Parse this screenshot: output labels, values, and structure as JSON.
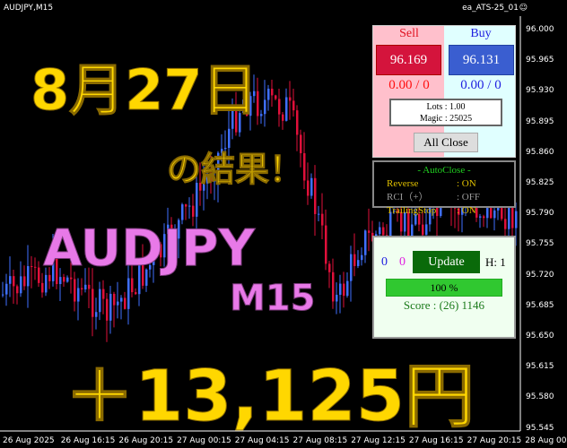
{
  "header": {
    "symbol": "AUDJPY,M15",
    "ea_name": "ea_ATS-25_01",
    "ea_icon": "smiley-icon"
  },
  "price_axis": [
    "96.000",
    "95.965",
    "95.930",
    "95.895",
    "95.860",
    "95.825",
    "95.790",
    "95.755",
    "95.720",
    "95.685",
    "95.650",
    "95.615",
    "95.580",
    "95.545"
  ],
  "time_axis": [
    "26 Aug 2025",
    "26 Aug 16:15",
    "26 Aug 20:15",
    "27 Aug 00:15",
    "27 Aug 04:15",
    "27 Aug 08:15",
    "27 Aug 12:15",
    "27 Aug 16:15",
    "27 Aug 20:15",
    "28 Aug 00"
  ],
  "overlay": {
    "date": "8月27日",
    "result": "の結果！",
    "pair": "AUDJPY",
    "timeframe": "M15",
    "profit": "＋13,125円"
  },
  "trade_panel": {
    "sell_label": "Sell",
    "buy_label": "Buy",
    "sell_price": "96.169",
    "buy_price": "96.131",
    "sell_pl": "0.00 / 0",
    "buy_pl": "0.00 / 0",
    "lots": "Lots   : 1.00",
    "magic": "Magic : 25025",
    "all_close": "All Close"
  },
  "autoclose": {
    "title": "- AutoClose -",
    "rows": [
      {
        "label": "Reverse",
        "value": ": ON"
      },
      {
        "label": "RCI（+）",
        "value": ": OFF"
      },
      {
        "label": "TrailingStop",
        "value": ": ON"
      }
    ]
  },
  "score_panel": {
    "count_blue": "0",
    "count_magenta": "0",
    "update": "Update",
    "h": "H: 1",
    "progress_label": "100 %",
    "progress": 1.0,
    "score": "Score : (26) 1146"
  },
  "colors": {
    "bull": "#3f6fff",
    "bear": "#e0103a",
    "sell": "#d4143c",
    "buy": "#3a5ed0",
    "gold": "#ffd700",
    "pink": "#e879e8"
  }
}
